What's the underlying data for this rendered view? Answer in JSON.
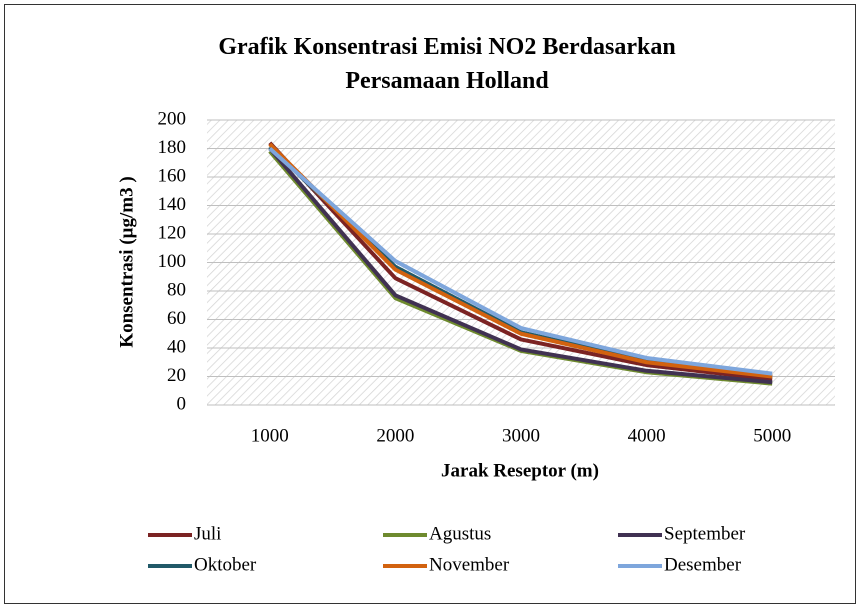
{
  "chart_data": {
    "type": "line",
    "title": "Grafik Konsentrasi Emisi NO2 Berdasarkan Persamaan Holland",
    "x_label": "Jarak Reseptor (m)",
    "y_label": "Konsentrasi (µg/m3 )",
    "categories": [
      "1000",
      "2000",
      "3000",
      "4000",
      "5000"
    ],
    "series": [
      {
        "name": "Juli",
        "color": "#7b2323",
        "values": [
          184,
          89,
          46,
          28,
          18
        ]
      },
      {
        "name": "Agustus",
        "color": "#6e8a2e",
        "values": [
          178,
          75,
          38,
          23,
          15
        ]
      },
      {
        "name": "September",
        "color": "#403152",
        "values": [
          180,
          77,
          39,
          24,
          16
        ]
      },
      {
        "name": "Oktober",
        "color": "#215968",
        "values": [
          181,
          97,
          51,
          31,
          20
        ]
      },
      {
        "name": "November",
        "color": "#d2620f",
        "values": [
          183,
          95,
          50,
          30,
          20
        ]
      },
      {
        "name": "Desember",
        "color": "#7ea6dc",
        "values": [
          180,
          101,
          54,
          33,
          22
        ]
      }
    ],
    "ylim": [
      0,
      200
    ],
    "yticks": [
      0,
      20,
      40,
      60,
      80,
      100,
      120,
      140,
      160,
      180,
      200
    ],
    "grid": true
  }
}
